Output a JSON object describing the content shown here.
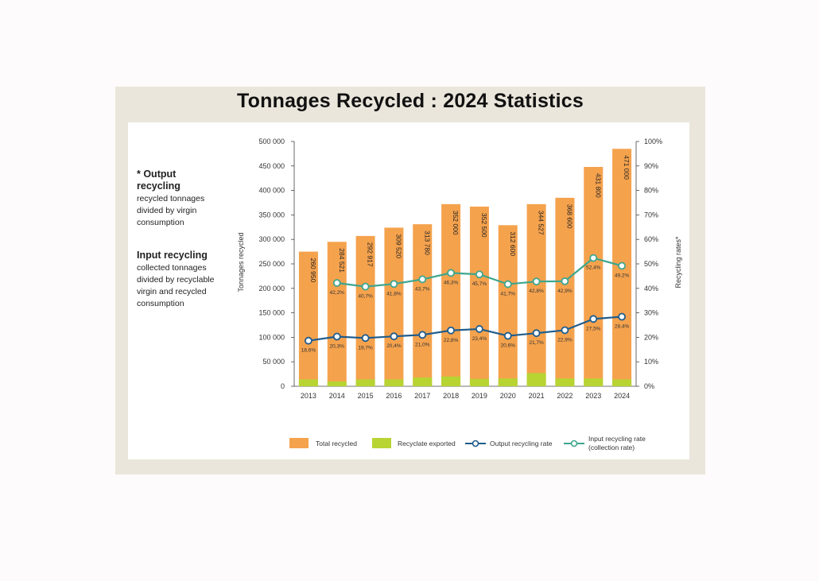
{
  "title": "Tonnages Recycled : 2024 Statistics",
  "notes": {
    "output": {
      "heading": "* Output recycling",
      "body": "recycled tonnages divided by virgin consumption"
    },
    "input": {
      "heading": "Input recycling",
      "body": "collected tonnages divided by recyclable virgin and recycled consumption"
    }
  },
  "colors": {
    "total": "#f5a24d",
    "exported": "#b7d432",
    "output_line": "#1f5c8c",
    "input_line": "#3ea68e"
  },
  "chart_data": {
    "type": "bar",
    "title": "Tonnages Recycled : 2024 Statistics",
    "categories": [
      "2013",
      "2014",
      "2015",
      "2016",
      "2017",
      "2018",
      "2019",
      "2020",
      "2021",
      "2022",
      "2023",
      "2024"
    ],
    "ylabel": "Tonnages recycled",
    "y2label": "Recycling rates*",
    "ylim": [
      0,
      500000
    ],
    "y2lim": [
      0,
      100
    ],
    "y_ticks": [
      "0",
      "50 000",
      "100 000",
      "150 000",
      "200 000",
      "250 000",
      "300 000",
      "350 000",
      "400 000",
      "450 000",
      "500 000"
    ],
    "y2_ticks": [
      "0%",
      "10%",
      "20%",
      "30%",
      "40%",
      "50%",
      "60%",
      "70%",
      "80%",
      "90%",
      "100%"
    ],
    "series": [
      {
        "name": "Total recycled",
        "kind": "bar",
        "values": [
          275000,
          295000,
          307000,
          324000,
          331000,
          372000,
          367000,
          329000,
          372000,
          385000,
          448000,
          485000
        ],
        "labels": [
          "260 950",
          "284 521",
          "292 917",
          "309 520",
          "313 780",
          "352 000",
          "352 500",
          "312 600",
          "344 527",
          "368 600",
          "431 800",
          "471 000"
        ]
      },
      {
        "name": "Recyclate exported",
        "kind": "bar",
        "values": [
          14000,
          10000,
          14000,
          14000,
          18000,
          20000,
          15000,
          16000,
          27000,
          16000,
          16000,
          14000
        ]
      },
      {
        "name": "Output recycling rate",
        "kind": "line",
        "axis": "right",
        "values": [
          18.6,
          20.3,
          19.7,
          20.4,
          21.0,
          22.8,
          23.4,
          20.6,
          21.7,
          22.9,
          27.5,
          28.4
        ],
        "labels": [
          "18,6%",
          "20,3%",
          "19,7%",
          "20,4%",
          "21,0%",
          "22,8%",
          "23,4%",
          "20,6%",
          "21,7%",
          "22,9%",
          "27,5%",
          "28,4%"
        ]
      },
      {
        "name": "Input recycling rate (collection rate)",
        "kind": "line",
        "axis": "right",
        "values": [
          null,
          42.2,
          40.7,
          41.8,
          43.7,
          46.3,
          45.7,
          41.7,
          42.8,
          42.9,
          52.4,
          49.2
        ],
        "labels": [
          null,
          "42,2%",
          "40,7%",
          "41,8%",
          "43,7%",
          "46,3%",
          "45,7%",
          "41,7%",
          "42,8%",
          "42,9%",
          "52,4%",
          "49,2%"
        ]
      }
    ],
    "legend": {
      "position": "bottom",
      "items": [
        {
          "label": "Total recycled",
          "type": "bar"
        },
        {
          "label": "Recyclate exported",
          "type": "bar"
        },
        {
          "label": "Output recycling rate",
          "type": "line"
        },
        {
          "label_line1": "Input recycling rate",
          "label_line2": "(collection rate)",
          "type": "line"
        }
      ]
    }
  }
}
